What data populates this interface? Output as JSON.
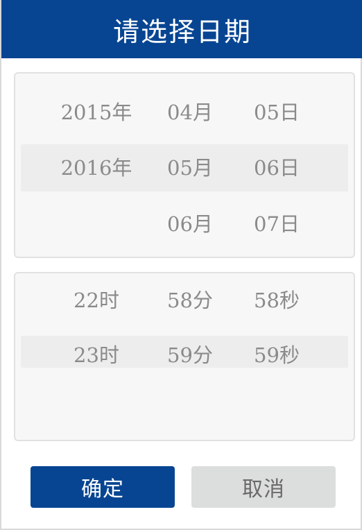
{
  "dialog": {
    "title": "请选择日期",
    "confirm_label": "确定",
    "cancel_label": "取消"
  },
  "date_picker": {
    "years": [
      "2015年",
      "2016年"
    ],
    "months": [
      "04月",
      "05月",
      "06月"
    ],
    "days": [
      "05日",
      "06日",
      "07日"
    ],
    "selected": {
      "year": "2016年",
      "month": "05月",
      "day": "06日"
    }
  },
  "time_picker": {
    "hours": [
      "22时",
      "23时"
    ],
    "minutes": [
      "58分",
      "59分"
    ],
    "seconds": [
      "58秒",
      "59秒"
    ],
    "selected": {
      "hour": "23时",
      "minute": "59分",
      "second": "59秒"
    }
  },
  "colors": {
    "primary": "#074592",
    "panel_bg": "#f7f7f7",
    "selection_band": "#ededed",
    "cancel_bg": "#dcdddd",
    "text_muted": "#8a8a8a"
  }
}
